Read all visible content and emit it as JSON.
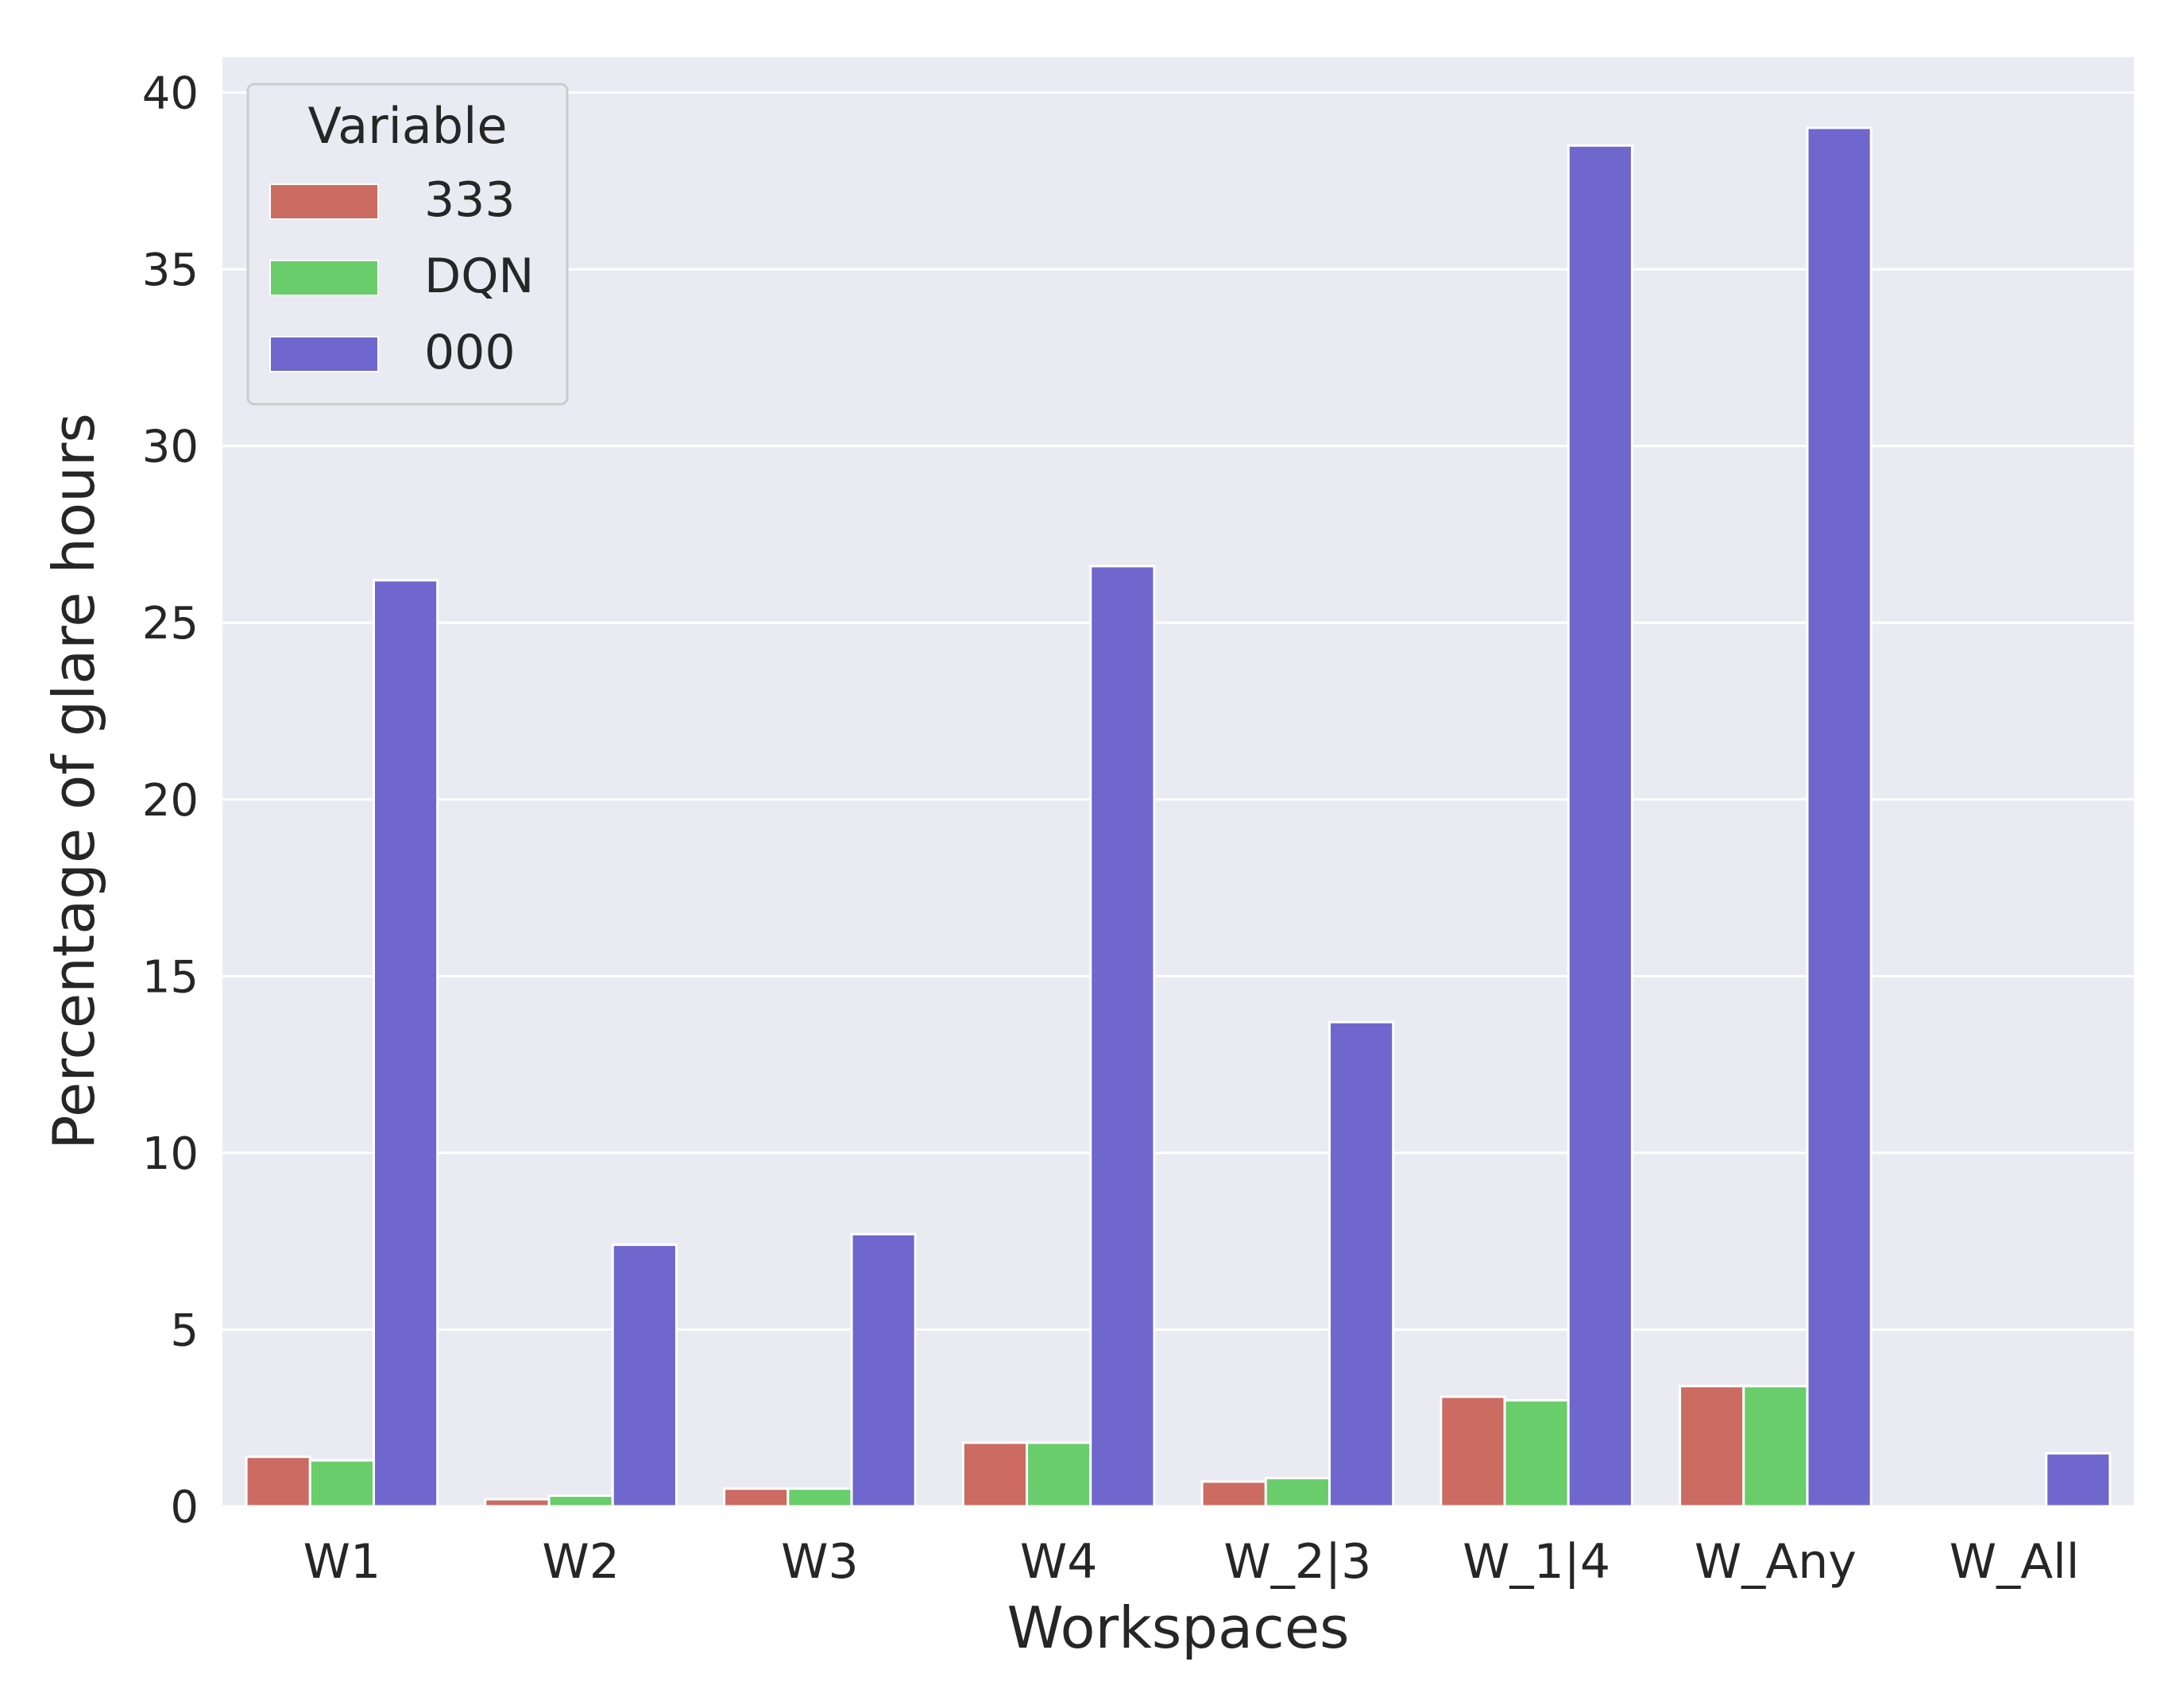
{
  "chart_data": {
    "type": "bar",
    "xlabel": "Workspaces",
    "ylabel": "Percentage of glare hours",
    "categories": [
      "W1",
      "W2",
      "W3",
      "W4",
      "W_2|3",
      "W_1|4",
      "W_Any",
      "W_All"
    ],
    "ylim": [
      0,
      41
    ],
    "yticks": [
      0,
      5,
      10,
      15,
      20,
      25,
      30,
      35,
      40
    ],
    "grid": true,
    "legend": {
      "title": "Variable",
      "position": "top-left"
    },
    "series": [
      {
        "name": "333",
        "color": "#cc6b62",
        "values": [
          1.4,
          0.2,
          0.5,
          1.8,
          0.7,
          3.1,
          3.4,
          0.0
        ]
      },
      {
        "name": "DQN",
        "color": "#69cd6b",
        "values": [
          1.3,
          0.3,
          0.5,
          1.8,
          0.8,
          3.0,
          3.4,
          0.0
        ]
      },
      {
        "name": "000",
        "color": "#6f67cd",
        "values": [
          26.2,
          7.4,
          7.7,
          26.6,
          13.7,
          38.5,
          39.0,
          1.5
        ]
      }
    ]
  }
}
